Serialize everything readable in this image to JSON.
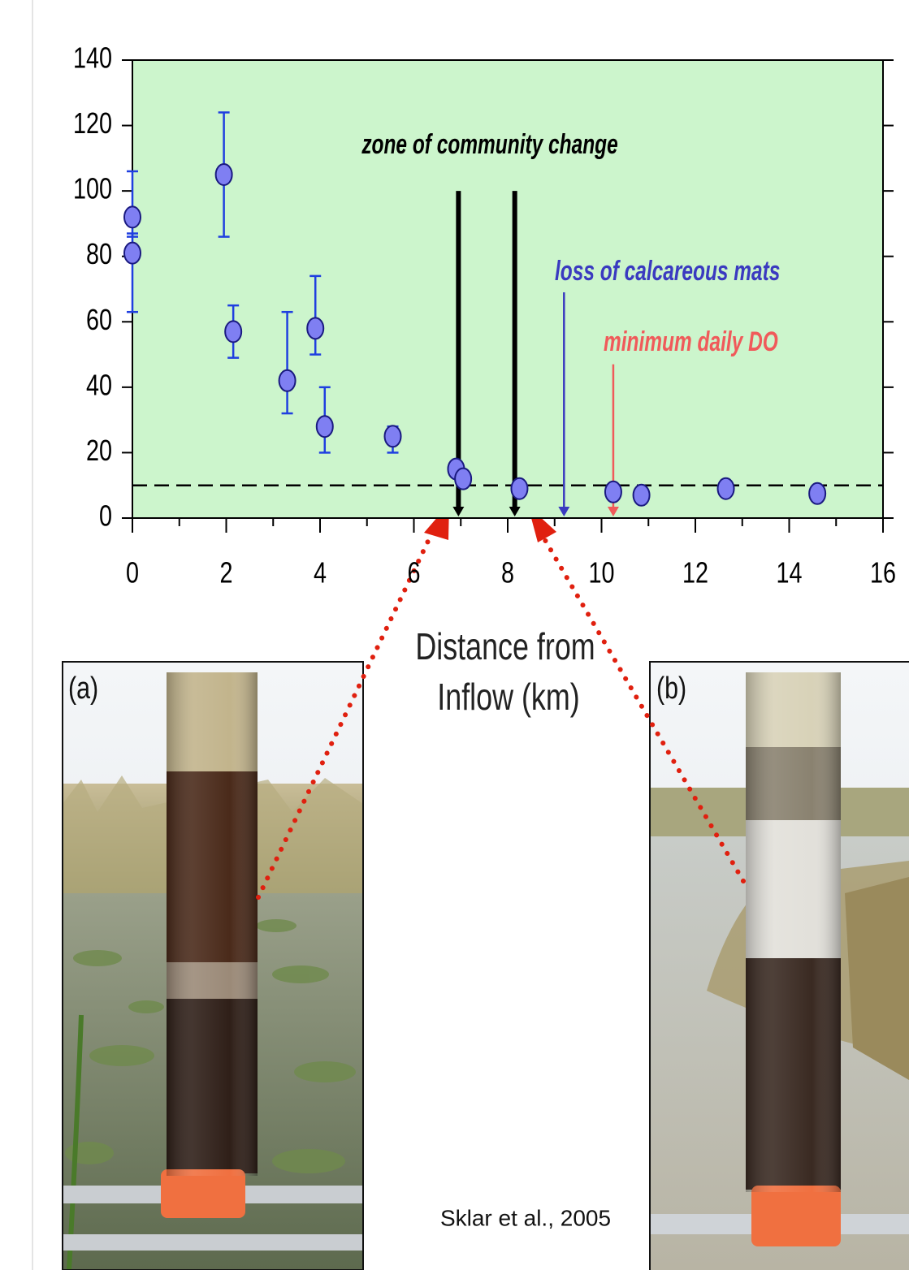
{
  "chart_data": {
    "type": "scatter",
    "x": [
      0,
      0,
      1.95,
      2.15,
      3.3,
      3.9,
      4.1,
      5.55,
      6.9,
      7.05,
      8.25,
      10.25,
      10.85,
      12.65,
      14.6
    ],
    "values": [
      92,
      81,
      105,
      57,
      42,
      58,
      28,
      25,
      15,
      12,
      9,
      8,
      7,
      9,
      7.5
    ],
    "yerr_plus": [
      14,
      6,
      19,
      8,
      21,
      16,
      12,
      3,
      null,
      null,
      null,
      null,
      null,
      null,
      null
    ],
    "yerr_minus": [
      6,
      18,
      19,
      8,
      10,
      8,
      8,
      5,
      null,
      null,
      null,
      null,
      null,
      null,
      null
    ],
    "color": "#7f7ff2",
    "error_color": "#1f3fe0",
    "background": "#ccf5cc",
    "xlim": [
      0,
      16
    ],
    "xticks": [
      0,
      2,
      4,
      6,
      8,
      10,
      12,
      14,
      16
    ],
    "ylim": [
      0,
      140
    ],
    "yticks": [
      0,
      20,
      40,
      60,
      80,
      100,
      120,
      140
    ],
    "xlabel": [
      "Distance from",
      "Inflow (km)"
    ],
    "threshold_line": {
      "y": 10,
      "style": "dashed"
    },
    "annotations": [
      {
        "text": "zone of community change",
        "x": [
          6.95,
          8.15
        ],
        "y": 100,
        "color": "#000000"
      },
      {
        "text": "loss of calcareous mats",
        "x": [
          9.2
        ],
        "y": 69,
        "color": "#3a3ac0"
      },
      {
        "text": "minimum daily DO",
        "x": [
          10.25
        ],
        "y": 47,
        "color": "#f05a5a"
      }
    ]
  },
  "figure": {
    "panels": [
      {
        "label": "(a)"
      },
      {
        "label": "(b)"
      }
    ],
    "citation": "Sklar et al., 2005"
  }
}
